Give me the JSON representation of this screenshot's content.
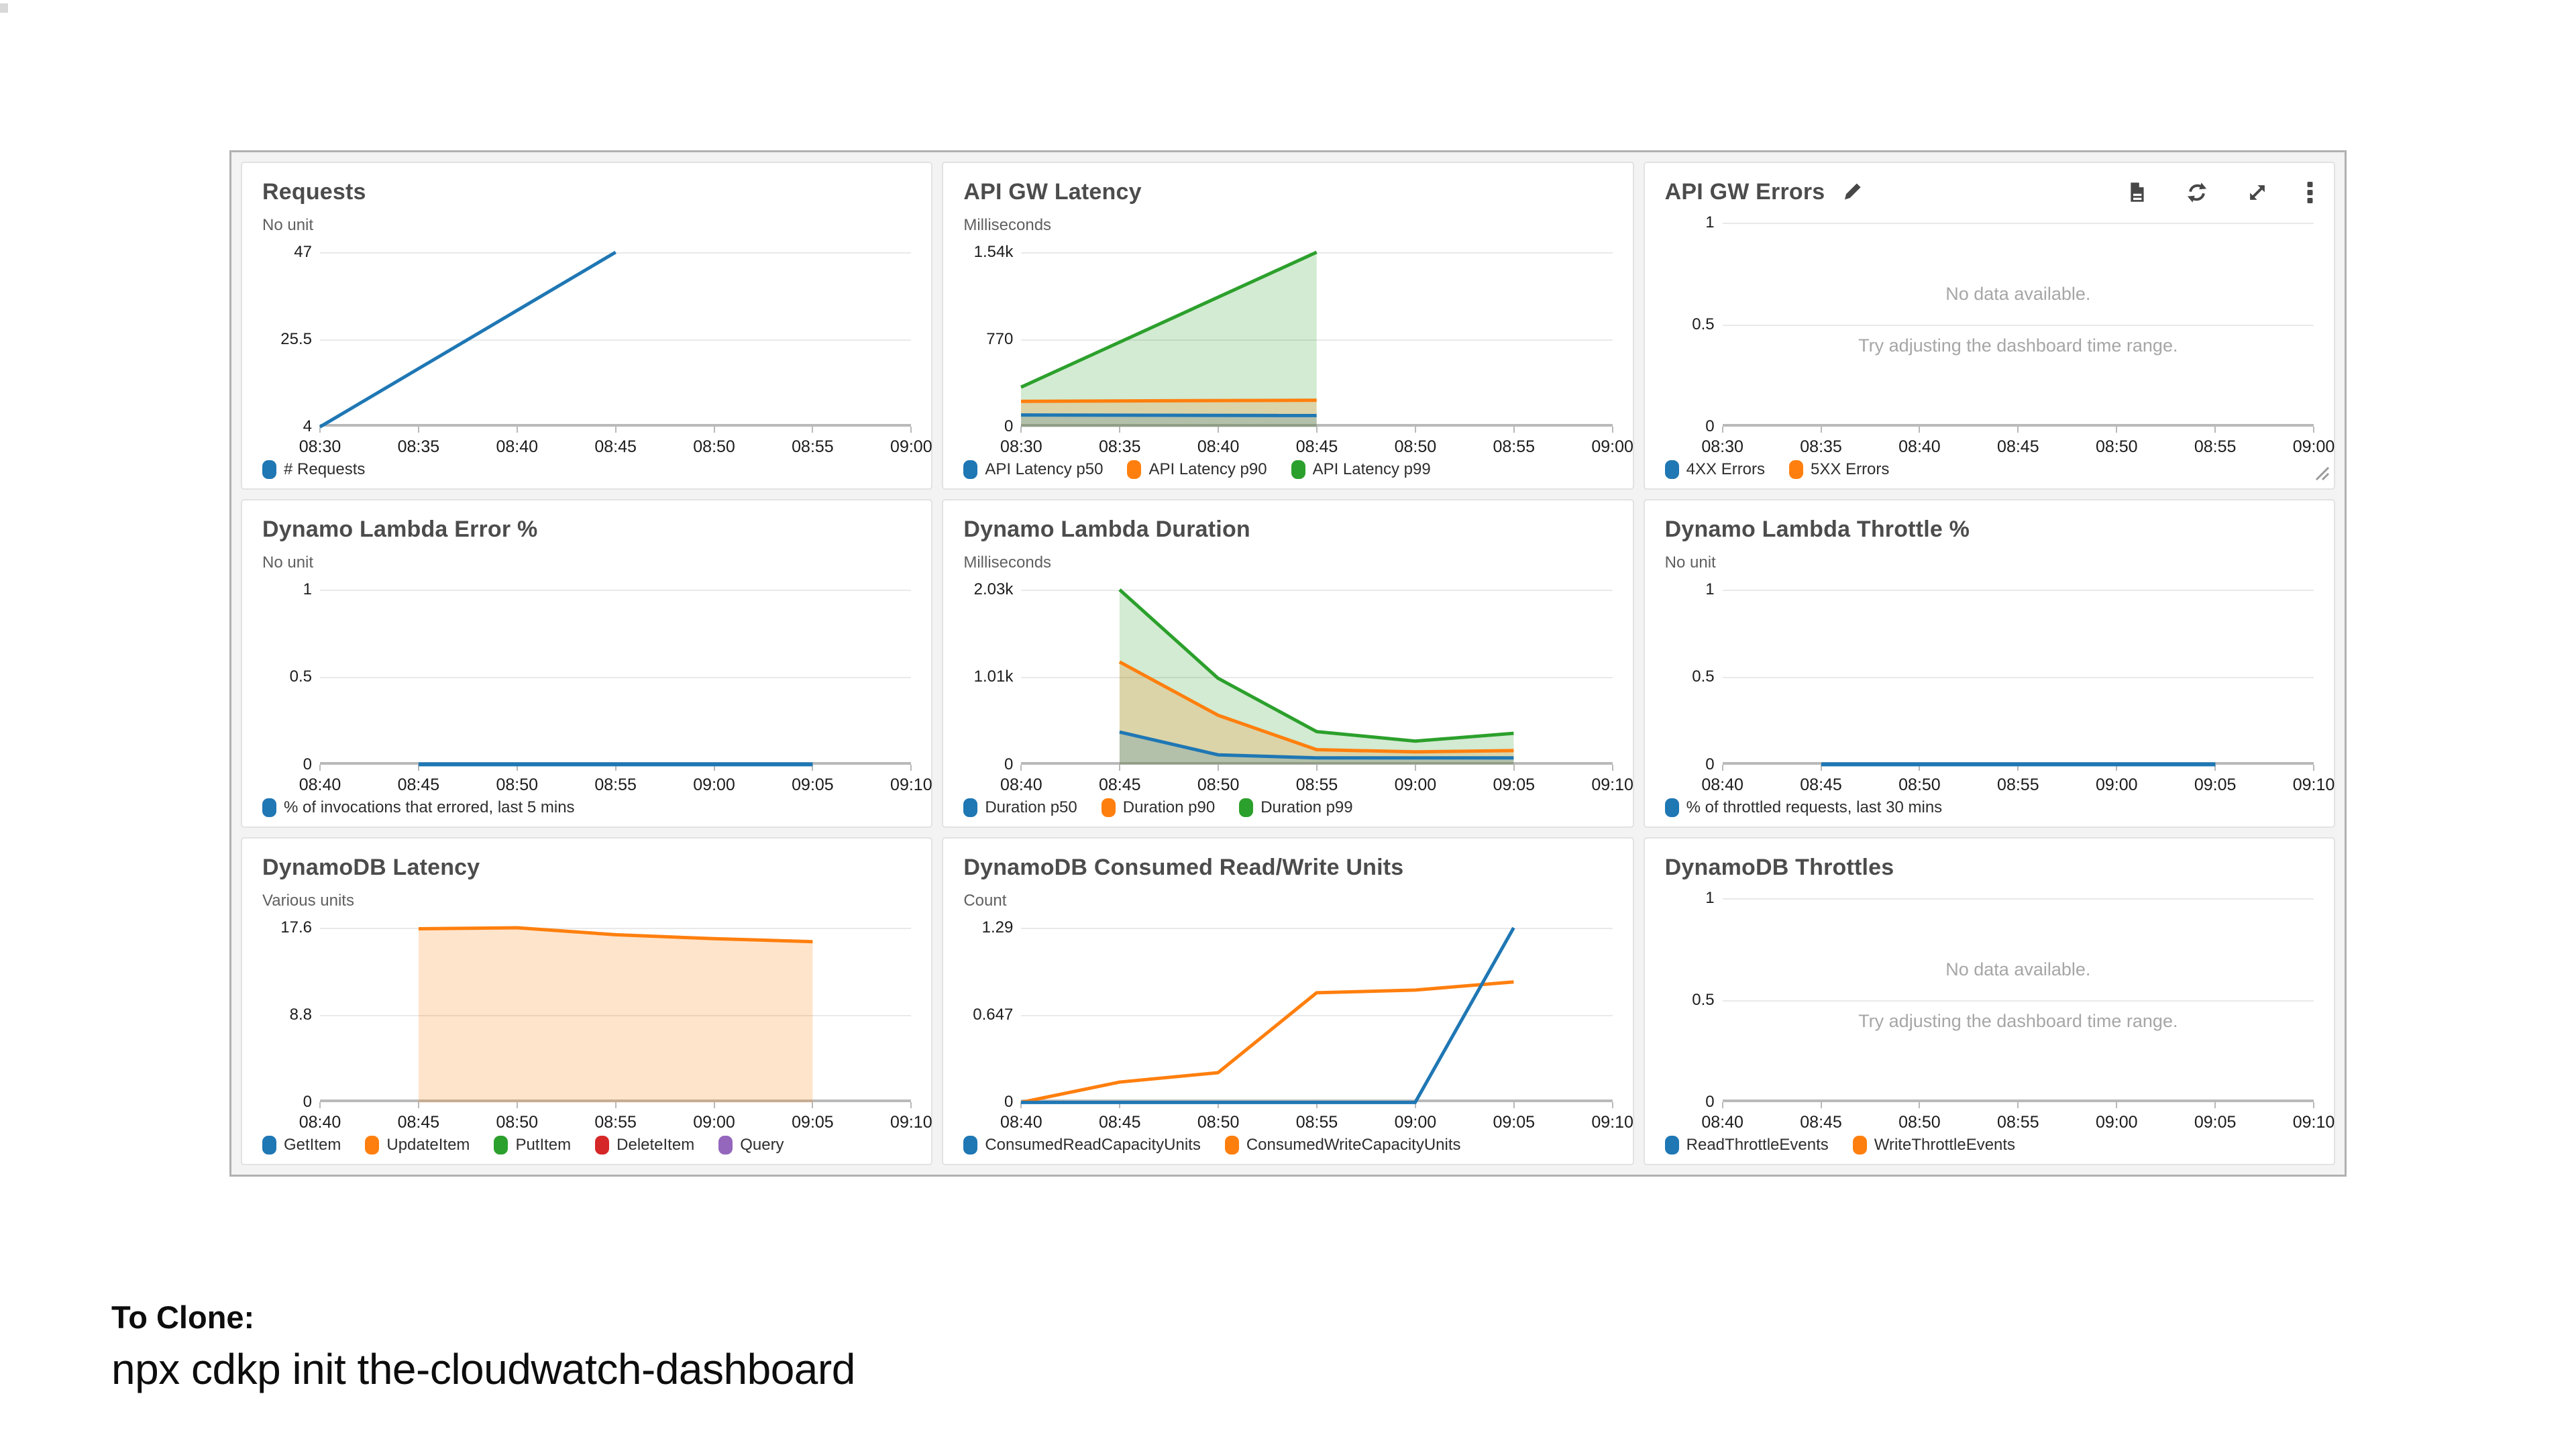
{
  "page": {
    "clone_heading": "To Clone:",
    "clone_command": "npx cdkp init the-cloudwatch-dashboard"
  },
  "colors": {
    "blue": "#1f77b4",
    "orange": "#ff7f0e",
    "green": "#2ca02c",
    "red": "#d62728",
    "purple": "#9467bd",
    "axis": "#b9b9b9",
    "grid": "#e9e9e9",
    "panel_title": "#4c4c4c",
    "tick_text": "#1c1c1c",
    "unit_text": "#5f5f5f",
    "no_data_text": "#a6a6a6",
    "icon": "#474747"
  },
  "no_data_message": {
    "line1": "No data available.",
    "line2": "Try adjusting the dashboard time range."
  },
  "panels": [
    {
      "title": "Requests",
      "unit": "No unit",
      "y_ticks": [
        "47",
        "25.5",
        "4"
      ],
      "x_ticks": [
        "08:30",
        "08:35",
        "08:40",
        "08:45",
        "08:50",
        "08:55",
        "09:00"
      ],
      "legend": [
        {
          "label": "# Requests",
          "color": "#1f77b4"
        }
      ]
    },
    {
      "title": "API GW Latency",
      "unit": "Milliseconds",
      "y_ticks": [
        "1.54k",
        "770",
        "0"
      ],
      "x_ticks": [
        "08:30",
        "08:35",
        "08:40",
        "08:45",
        "08:50",
        "08:55",
        "09:00"
      ],
      "legend": [
        {
          "label": "API Latency p50",
          "color": "#1f77b4"
        },
        {
          "label": "API Latency p90",
          "color": "#ff7f0e"
        },
        {
          "label": "API Latency p99",
          "color": "#2ca02c"
        }
      ]
    },
    {
      "title": "API GW Errors",
      "unit": null,
      "editable": true,
      "resizable": true,
      "no_data": true,
      "toolbar": [
        "logs-icon",
        "refresh-icon",
        "expand-icon",
        "menu-icon"
      ],
      "y_ticks": [
        "1",
        "0.5",
        "0"
      ],
      "x_ticks": [
        "08:30",
        "08:35",
        "08:40",
        "08:45",
        "08:50",
        "08:55",
        "09:00"
      ],
      "legend": [
        {
          "label": "4XX Errors",
          "color": "#1f77b4"
        },
        {
          "label": "5XX Errors",
          "color": "#ff7f0e"
        }
      ]
    },
    {
      "title": "Dynamo Lambda Error %",
      "unit": "No unit",
      "y_ticks": [
        "1",
        "0.5",
        "0"
      ],
      "x_ticks": [
        "08:40",
        "08:45",
        "08:50",
        "08:55",
        "09:00",
        "09:05",
        "09:10"
      ],
      "legend": [
        {
          "label": "% of invocations that errored, last 5 mins",
          "color": "#1f77b4"
        }
      ]
    },
    {
      "title": "Dynamo Lambda Duration",
      "unit": "Milliseconds",
      "y_ticks": [
        "2.03k",
        "1.01k",
        "0"
      ],
      "x_ticks": [
        "08:40",
        "08:45",
        "08:50",
        "08:55",
        "09:00",
        "09:05",
        "09:10"
      ],
      "legend": [
        {
          "label": "Duration p50",
          "color": "#1f77b4"
        },
        {
          "label": "Duration p90",
          "color": "#ff7f0e"
        },
        {
          "label": "Duration p99",
          "color": "#2ca02c"
        }
      ]
    },
    {
      "title": "Dynamo Lambda Throttle %",
      "unit": "No unit",
      "y_ticks": [
        "1",
        "0.5",
        "0"
      ],
      "x_ticks": [
        "08:40",
        "08:45",
        "08:50",
        "08:55",
        "09:00",
        "09:05",
        "09:10"
      ],
      "legend": [
        {
          "label": "% of throttled requests, last 30 mins",
          "color": "#1f77b4"
        }
      ]
    },
    {
      "title": "DynamoDB Latency",
      "unit": "Various units",
      "y_ticks": [
        "17.6",
        "8.8",
        "0"
      ],
      "x_ticks": [
        "08:40",
        "08:45",
        "08:50",
        "08:55",
        "09:00",
        "09:05",
        "09:10"
      ],
      "legend": [
        {
          "label": "GetItem",
          "color": "#1f77b4"
        },
        {
          "label": "UpdateItem",
          "color": "#ff7f0e"
        },
        {
          "label": "PutItem",
          "color": "#2ca02c"
        },
        {
          "label": "DeleteItem",
          "color": "#d62728"
        },
        {
          "label": "Query",
          "color": "#9467bd"
        }
      ]
    },
    {
      "title": "DynamoDB Consumed Read/Write Units",
      "unit": "Count",
      "y_ticks": [
        "1.29",
        "0.647",
        "0"
      ],
      "x_ticks": [
        "08:40",
        "08:45",
        "08:50",
        "08:55",
        "09:00",
        "09:05",
        "09:10"
      ],
      "legend": [
        {
          "label": "ConsumedReadCapacityUnits",
          "color": "#1f77b4"
        },
        {
          "label": "ConsumedWriteCapacityUnits",
          "color": "#ff7f0e"
        }
      ]
    },
    {
      "title": "DynamoDB Throttles",
      "unit": null,
      "no_data": true,
      "y_ticks": [
        "1",
        "0.5",
        "0"
      ],
      "x_ticks": [
        "08:40",
        "08:45",
        "08:50",
        "08:55",
        "09:00",
        "09:05",
        "09:10"
      ],
      "legend": [
        {
          "label": "ReadThrottleEvents",
          "color": "#1f77b4"
        },
        {
          "label": "WriteThrottleEvents",
          "color": "#ff7f0e"
        }
      ]
    }
  ],
  "chart_data": [
    {
      "type": "line",
      "title": "Requests",
      "x_start": "08:30",
      "x_end": "09:00",
      "ylim": [
        4,
        47
      ],
      "series": [
        {
          "name": "# Requests",
          "color": "#1f77b4",
          "fill": false,
          "points": [
            [
              "08:30",
              4
            ],
            [
              "08:45",
              47
            ]
          ]
        }
      ]
    },
    {
      "type": "area",
      "title": "API GW Latency",
      "x_start": "08:30",
      "x_end": "09:00",
      "ylim": [
        0,
        1540
      ],
      "series": [
        {
          "name": "API Latency p99",
          "color": "#2ca02c",
          "fill": true,
          "points": [
            [
              "08:30",
              350
            ],
            [
              "08:45",
              1540
            ]
          ]
        },
        {
          "name": "API Latency p90",
          "color": "#ff7f0e",
          "fill": true,
          "points": [
            [
              "08:30",
              225
            ],
            [
              "08:45",
              235
            ]
          ]
        },
        {
          "name": "API Latency p50",
          "color": "#1f77b4",
          "fill": true,
          "points": [
            [
              "08:30",
              105
            ],
            [
              "08:45",
              100
            ]
          ]
        }
      ]
    },
    {
      "type": "line",
      "title": "API GW Errors",
      "x_start": "08:30",
      "x_end": "09:00",
      "ylim": [
        0,
        1
      ],
      "series": []
    },
    {
      "type": "line",
      "title": "Dynamo Lambda Error %",
      "x_start": "08:40",
      "x_end": "09:10",
      "ylim": [
        0,
        1
      ],
      "series": [
        {
          "name": "% of invocations that errored, last 5 mins",
          "color": "#1f77b4",
          "fill": false,
          "points": [
            [
              "08:45",
              0
            ],
            [
              "09:05",
              0
            ]
          ]
        }
      ]
    },
    {
      "type": "area",
      "title": "Dynamo Lambda Duration",
      "x_start": "08:40",
      "x_end": "09:10",
      "ylim": [
        0,
        2030
      ],
      "series": [
        {
          "name": "Duration p99",
          "color": "#2ca02c",
          "fill": true,
          "points": [
            [
              "08:45",
              2030
            ],
            [
              "08:50",
              1000
            ],
            [
              "08:55",
              380
            ],
            [
              "09:00",
              270
            ],
            [
              "09:05",
              360
            ]
          ]
        },
        {
          "name": "Duration p90",
          "color": "#ff7f0e",
          "fill": true,
          "points": [
            [
              "08:45",
              1190
            ],
            [
              "08:50",
              570
            ],
            [
              "08:55",
              170
            ],
            [
              "09:00",
              145
            ],
            [
              "09:05",
              160
            ]
          ]
        },
        {
          "name": "Duration p50",
          "color": "#1f77b4",
          "fill": true,
          "points": [
            [
              "08:45",
              375
            ],
            [
              "08:50",
              110
            ],
            [
              "08:55",
              75
            ],
            [
              "09:00",
              75
            ],
            [
              "09:05",
              75
            ]
          ]
        }
      ]
    },
    {
      "type": "line",
      "title": "Dynamo Lambda Throttle %",
      "x_start": "08:40",
      "x_end": "09:10",
      "ylim": [
        0,
        1
      ],
      "series": [
        {
          "name": "% of throttled requests, last 30 mins",
          "color": "#1f77b4",
          "fill": false,
          "points": [
            [
              "08:45",
              0
            ],
            [
              "09:05",
              0
            ]
          ]
        }
      ]
    },
    {
      "type": "area",
      "title": "DynamoDB Latency",
      "x_start": "08:40",
      "x_end": "09:10",
      "ylim": [
        0,
        17.6
      ],
      "series": [
        {
          "name": "UpdateItem",
          "color": "#ff7f0e",
          "fill": true,
          "points": [
            [
              "08:45",
              17.5
            ],
            [
              "08:50",
              17.6
            ],
            [
              "08:55",
              16.9
            ],
            [
              "09:00",
              16.5
            ],
            [
              "09:05",
              16.2
            ]
          ]
        }
      ]
    },
    {
      "type": "line",
      "title": "DynamoDB Consumed Read/Write Units",
      "x_start": "08:40",
      "x_end": "09:10",
      "ylim": [
        0,
        1.29
      ],
      "series": [
        {
          "name": "ConsumedWriteCapacityUnits",
          "color": "#ff7f0e",
          "fill": false,
          "points": [
            [
              "08:40",
              0
            ],
            [
              "08:45",
              0.15
            ],
            [
              "08:50",
              0.22
            ],
            [
              "08:55",
              0.81
            ],
            [
              "09:00",
              0.83
            ],
            [
              "09:05",
              0.89
            ]
          ]
        },
        {
          "name": "ConsumedReadCapacityUnits",
          "color": "#1f77b4",
          "fill": false,
          "points": [
            [
              "08:40",
              0
            ],
            [
              "09:00",
              0
            ],
            [
              "09:05",
              1.29
            ]
          ]
        }
      ]
    },
    {
      "type": "line",
      "title": "DynamoDB Throttles",
      "x_start": "08:40",
      "x_end": "09:10",
      "ylim": [
        0,
        1
      ],
      "series": []
    }
  ]
}
